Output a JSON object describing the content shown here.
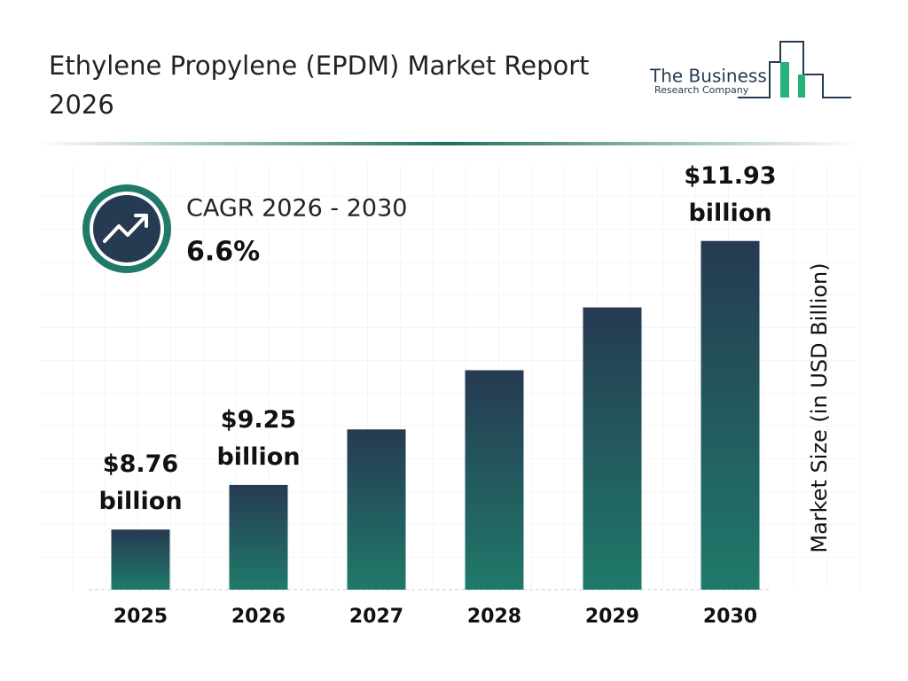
{
  "header": {
    "title": "Ethylene Propylene (EPDM) Market Report 2026",
    "logo_line1": "The Business",
    "logo_line2": "Research Company"
  },
  "cagr": {
    "label": "CAGR 2026 - 2030",
    "value": "6.6%"
  },
  "chart_data": {
    "type": "bar",
    "categories": [
      "2025",
      "2026",
      "2027",
      "2028",
      "2029",
      "2030"
    ],
    "values": [
      8.76,
      9.25,
      9.86,
      10.51,
      11.2,
      11.93
    ],
    "value_labels": [
      "$8.76 billion",
      "$9.25 billion",
      null,
      null,
      null,
      "$11.93 billion"
    ],
    "y_label": "Market Size (in USD Billion)",
    "ylim": [
      8.1,
      12.2
    ],
    "color_top": "#263a52",
    "color_bottom": "#1f7a6a"
  }
}
